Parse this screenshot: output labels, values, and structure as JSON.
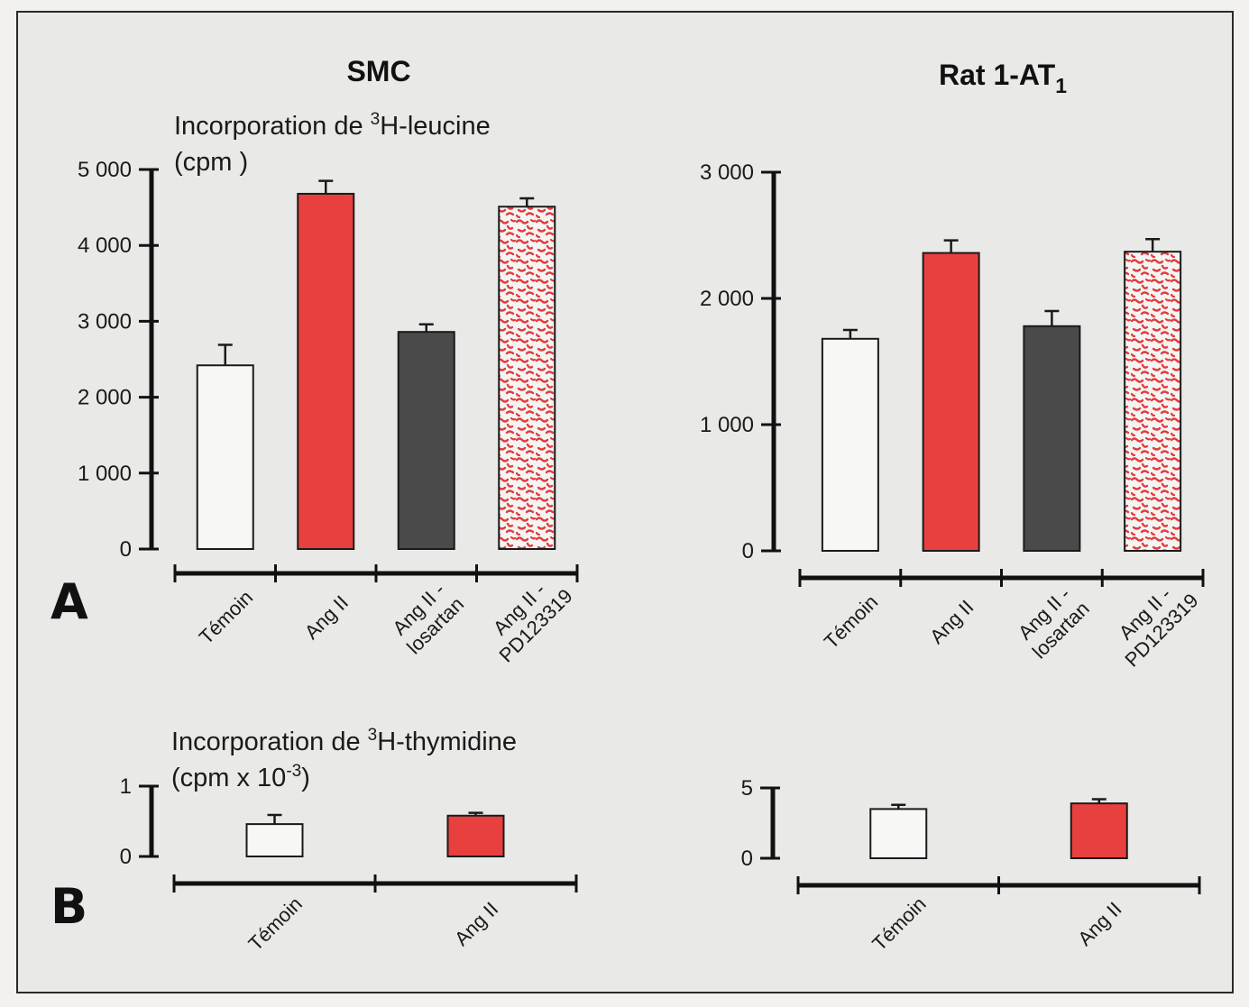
{
  "figure": {
    "panel_labels": {
      "a": "A",
      "b": "B"
    }
  },
  "colors": {
    "temoin": "#f7f7f5",
    "angii": "#e8403f",
    "losartan": "#4a4a4a",
    "pd_red": "#e23b3e",
    "pd_white": "#f4f4f2",
    "axis": "#111111",
    "frame": "#2a2a2a"
  },
  "smc": {
    "title": "SMC",
    "leucine_label_prefix": "Incorporation de ",
    "leucine_label_sup": "3",
    "leucine_label_suffix": "H-leucine",
    "leucine_unit": "(cpm )",
    "thymidine_label_prefix": "Incorporation de ",
    "thymidine_label_sup": "3",
    "thymidine_label_suffix": "H-thymidine",
    "thymidine_unit_prefix": "(cpm x 10",
    "thymidine_unit_sup": "-3",
    "thymidine_unit_suffix": ")"
  },
  "rat": {
    "title_main": "Rat 1-AT",
    "title_sub": "1"
  },
  "chart_data": [
    {
      "id": "smc_leucine",
      "type": "bar",
      "panel": "A",
      "title": "SMC",
      "ylabel": "Incorporation de 3H-leucine (cpm )",
      "categories": [
        "Témoin",
        "Ang II",
        "Ang II - losartan",
        "Ang II - PD123319"
      ],
      "category_lines": [
        [
          "Témoin"
        ],
        [
          "Ang II"
        ],
        [
          "Ang II -",
          "losartan"
        ],
        [
          "Ang II -",
          "PD123319"
        ]
      ],
      "values": [
        2420,
        4680,
        2860,
        4510
      ],
      "errors": [
        270,
        170,
        100,
        110
      ],
      "bar_styles": [
        "temoin",
        "angii",
        "losartan",
        "pd"
      ],
      "ylim": [
        0,
        5000
      ],
      "yticks": [
        0,
        1000,
        2000,
        3000,
        4000,
        5000
      ],
      "yticklabels": [
        "0",
        "1 000",
        "2 000",
        "3 000",
        "4 000",
        "5 000"
      ]
    },
    {
      "id": "rat_leucine",
      "type": "bar",
      "panel": "A",
      "title": "Rat 1-AT1",
      "categories": [
        "Témoin",
        "Ang II",
        "Ang II - losartan",
        "Ang II - PD123319"
      ],
      "category_lines": [
        [
          "Témoin"
        ],
        [
          "Ang II"
        ],
        [
          "Ang II -",
          "losartan"
        ],
        [
          "Ang II -",
          "PD123319"
        ]
      ],
      "values": [
        1680,
        2360,
        1780,
        2370
      ],
      "errors": [
        70,
        100,
        120,
        100
      ],
      "bar_styles": [
        "temoin",
        "angii",
        "losartan",
        "pd"
      ],
      "ylim": [
        0,
        3000
      ],
      "yticks": [
        0,
        1000,
        2000,
        3000
      ],
      "yticklabels": [
        "0",
        "1 000",
        "2 000",
        "3 000"
      ]
    },
    {
      "id": "smc_thymidine",
      "type": "bar",
      "panel": "B",
      "ylabel": "Incorporation de 3H-thymidine (cpm x 10-3)",
      "categories": [
        "Témoin",
        "Ang II"
      ],
      "category_lines": [
        [
          "Témoin"
        ],
        [
          "Ang II"
        ]
      ],
      "values": [
        0.46,
        0.58
      ],
      "errors": [
        0.13,
        0.04
      ],
      "bar_styles": [
        "temoin",
        "angii"
      ],
      "ylim": [
        0,
        1
      ],
      "yticks": [
        0,
        1
      ],
      "yticklabels": [
        "0",
        "1"
      ]
    },
    {
      "id": "rat_thymidine",
      "type": "bar",
      "panel": "B",
      "categories": [
        "Témoin",
        "Ang II"
      ],
      "category_lines": [
        [
          "Témoin"
        ],
        [
          "Ang II"
        ]
      ],
      "values": [
        3.5,
        3.9
      ],
      "errors": [
        0.3,
        0.3
      ],
      "bar_styles": [
        "temoin",
        "angii"
      ],
      "ylim": [
        0,
        5
      ],
      "yticks": [
        0,
        5
      ],
      "yticklabels": [
        "0",
        "5"
      ]
    }
  ]
}
